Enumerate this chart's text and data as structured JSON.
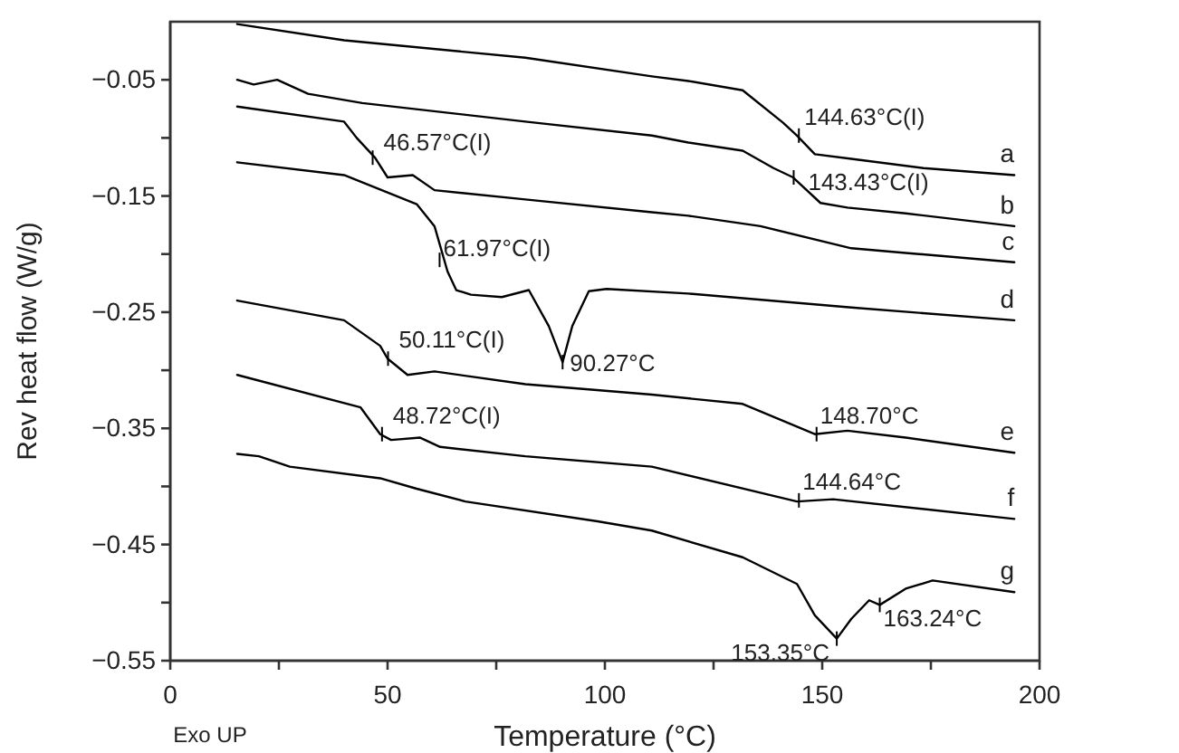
{
  "chart_data": {
    "type": "line",
    "xlabel": "Temperature (°C)",
    "ylabel": "Rev heat flow (W/g)",
    "xlim": [
      0,
      200
    ],
    "xticks": [
      0,
      {
        "value": 25,
        "label": null
      },
      50,
      {
        "value": 75,
        "label": null
      },
      100,
      {
        "value": 125,
        "label": null
      },
      150,
      {
        "value": 175,
        "label": null
      },
      200
    ],
    "ylim": [
      -0.55,
      0
    ],
    "yticks": [
      -0.55,
      {
        "value": -0.5,
        "label": null
      },
      -0.45,
      {
        "value": -0.4,
        "label": null
      },
      -0.35,
      {
        "value": -0.3,
        "label": null
      },
      -0.25,
      {
        "value": -0.2,
        "label": null
      },
      -0.15,
      {
        "value": -0.1,
        "label": null
      },
      -0.05
    ],
    "grid": false,
    "legend": false,
    "marker": "none",
    "line_style": "solid",
    "series": [
      {
        "name": "a",
        "color": "#000000",
        "x": [
          15.4,
          40,
          81.7,
          110.8,
          119.2,
          131.7,
          141,
          144.2,
          148.3,
          156.7,
          173.3,
          194.2
        ],
        "values": [
          -0.002,
          -0.016,
          -0.031,
          -0.047,
          -0.051,
          -0.059,
          -0.087,
          -0.098,
          -0.114,
          -0.118,
          -0.126,
          -0.132
        ]
      },
      {
        "name": "b",
        "color": "#000000",
        "x": [
          15.4,
          19.2,
          24.6,
          31.7,
          44.2,
          81.7,
          110.8,
          119.2,
          131.7,
          138.8,
          143.3,
          149.6,
          155.8,
          169.2,
          194.2
        ],
        "values": [
          -0.05,
          -0.054,
          -0.05,
          -0.062,
          -0.07,
          -0.086,
          -0.098,
          -0.104,
          -0.111,
          -0.126,
          -0.134,
          -0.156,
          -0.16,
          -0.165,
          -0.176
        ]
      },
      {
        "name": "c",
        "color": "#000000",
        "x": [
          15.4,
          40,
          42.9,
          47.1,
          50,
          55.8,
          60.8,
          81.7,
          110.8,
          119.2,
          135.8,
          156.7,
          169.2,
          194.2
        ],
        "values": [
          -0.073,
          -0.086,
          -0.1,
          -0.117,
          -0.134,
          -0.132,
          -0.145,
          -0.153,
          -0.164,
          -0.167,
          -0.176,
          -0.195,
          -0.199,
          -0.207
        ]
      },
      {
        "name": "d",
        "color": "#000000",
        "x": [
          15.4,
          40,
          56.7,
          60.8,
          63.8,
          65.8,
          69.2,
          76.3,
          82.5,
          87.1,
          90.27,
          92.5,
          96.3,
          100.4,
          119.2,
          156.7,
          194.2
        ],
        "values": [
          -0.121,
          -0.132,
          -0.157,
          -0.176,
          -0.215,
          -0.231,
          -0.235,
          -0.237,
          -0.231,
          -0.262,
          -0.293,
          -0.262,
          -0.232,
          -0.23,
          -0.234,
          -0.246,
          -0.257
        ]
      },
      {
        "name": "e",
        "color": "#000000",
        "x": [
          15.4,
          40,
          48.3,
          50,
          54.6,
          60.8,
          81.7,
          110.8,
          131.7,
          148.3,
          155.8,
          169.2,
          194.2
        ],
        "values": [
          -0.24,
          -0.257,
          -0.279,
          -0.29,
          -0.304,
          -0.301,
          -0.312,
          -0.321,
          -0.329,
          -0.355,
          -0.352,
          -0.358,
          -0.371
        ]
      },
      {
        "name": "f",
        "color": "#000000",
        "x": [
          15.4,
          43.8,
          48.3,
          50.8,
          57.5,
          62.1,
          81.7,
          110.8,
          144.2,
          152.5,
          194.2
        ],
        "values": [
          -0.304,
          -0.332,
          -0.355,
          -0.36,
          -0.358,
          -0.366,
          -0.374,
          -0.383,
          -0.413,
          -0.411,
          -0.428
        ]
      },
      {
        "name": "g",
        "color": "#000000",
        "x": [
          15.4,
          20.4,
          27.5,
          48.3,
          56.7,
          67.9,
          98.3,
          110.8,
          131.7,
          144.2,
          148.3,
          153.35,
          156.7,
          160.8,
          163.24,
          169.2,
          175.4,
          194.2
        ],
        "values": [
          -0.372,
          -0.374,
          -0.383,
          -0.393,
          -0.402,
          -0.413,
          -0.43,
          -0.438,
          -0.461,
          -0.484,
          -0.511,
          -0.531,
          -0.514,
          -0.498,
          -0.502,
          -0.488,
          -0.481,
          -0.491
        ]
      }
    ],
    "annotations": [
      {
        "text": "144.63°C(I)",
        "x": 144.63,
        "y": -0.098
      },
      {
        "text": "143.43°C(I)",
        "x": 143.43,
        "y": -0.134
      },
      {
        "text": "46.57°C(I)",
        "x": 46.57,
        "y": -0.117
      },
      {
        "text": "61.97°C(I)",
        "x": 61.97,
        "y": -0.205
      },
      {
        "text": "90.27°C",
        "x": 90.27,
        "y": -0.293
      },
      {
        "text": "50.11°C(I)",
        "x": 50.11,
        "y": -0.29
      },
      {
        "text": "48.72°C(I)",
        "x": 48.72,
        "y": -0.355
      },
      {
        "text": "148.70°C",
        "x": 148.7,
        "y": -0.355
      },
      {
        "text": "144.64°C",
        "x": 144.64,
        "y": -0.412
      },
      {
        "text": "153.35°C",
        "x": 153.35,
        "y": -0.531
      },
      {
        "text": "163.24°C",
        "x": 163.24,
        "y": -0.502
      },
      "Exo UP"
    ]
  }
}
